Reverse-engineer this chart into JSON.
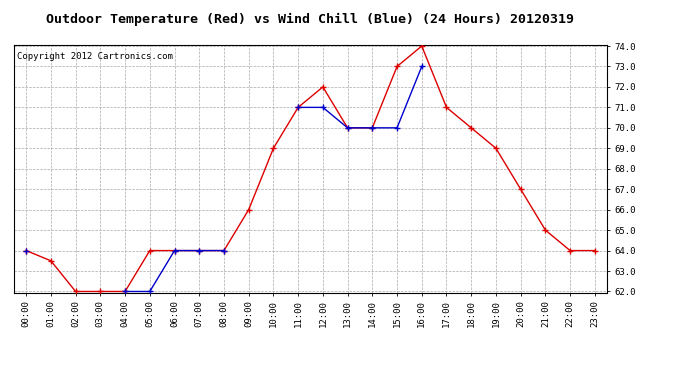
{
  "title": "Outdoor Temperature (Red) vs Wind Chill (Blue) (24 Hours) 20120319",
  "copyright": "Copyright 2012 Cartronics.com",
  "x_labels": [
    "00:00",
    "01:00",
    "02:00",
    "03:00",
    "04:00",
    "05:00",
    "06:00",
    "07:00",
    "08:00",
    "09:00",
    "10:00",
    "11:00",
    "12:00",
    "13:00",
    "14:00",
    "15:00",
    "16:00",
    "17:00",
    "18:00",
    "19:00",
    "20:00",
    "21:00",
    "22:00",
    "23:00"
  ],
  "red_temp": [
    64.0,
    63.5,
    62.0,
    62.0,
    62.0,
    64.0,
    64.0,
    64.0,
    64.0,
    66.0,
    69.0,
    71.0,
    72.0,
    70.0,
    70.0,
    73.0,
    74.0,
    71.0,
    70.0,
    69.0,
    67.0,
    65.0,
    64.0,
    64.0
  ],
  "blue_wind_chill": [
    64.0,
    null,
    null,
    null,
    62.0,
    62.0,
    64.0,
    64.0,
    64.0,
    null,
    null,
    71.0,
    71.0,
    70.0,
    70.0,
    70.0,
    73.0,
    null,
    null,
    null,
    null,
    null,
    null,
    null
  ],
  "ylim_min": 62.0,
  "ylim_max": 74.0,
  "yticks": [
    62.0,
    63.0,
    64.0,
    65.0,
    66.0,
    67.0,
    68.0,
    69.0,
    70.0,
    71.0,
    72.0,
    73.0,
    74.0
  ],
  "red_color": "#dd0000",
  "blue_color": "#0000cc",
  "bg_color": "#ffffff",
  "grid_color": "#aaaaaa",
  "title_fontsize": 9.5,
  "copyright_fontsize": 6.5,
  "tick_fontsize": 6.5
}
